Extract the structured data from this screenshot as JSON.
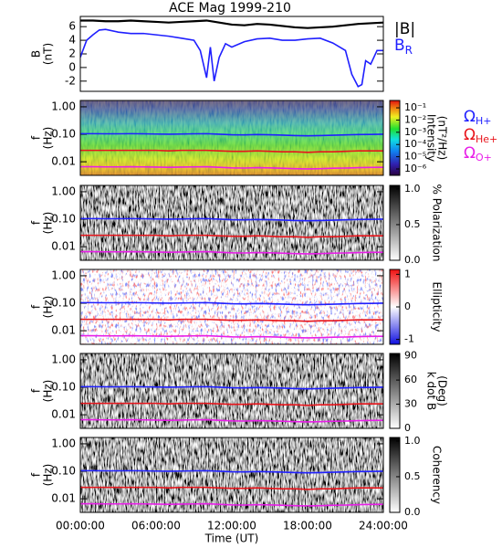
{
  "chart_data": [
    {
      "type": "line",
      "title": "ACE Mag 1999-210",
      "ylabel": [
        "B",
        "(nT)"
      ],
      "xlim": [
        0,
        24
      ],
      "ylim": [
        -3.5,
        7.5
      ],
      "yticks": [
        -2,
        0,
        2,
        4,
        6
      ],
      "series": [
        {
          "name": "|B|",
          "color": "#000000",
          "x": [
            0,
            1,
            2,
            3,
            4,
            5,
            6,
            7,
            8,
            9,
            10,
            11,
            12,
            13,
            14,
            15,
            16,
            17,
            18,
            19,
            20,
            21,
            22,
            23,
            24
          ],
          "values": [
            6.9,
            6.9,
            6.8,
            6.8,
            6.9,
            6.8,
            6.7,
            6.6,
            6.7,
            6.8,
            6.9,
            6.6,
            6.3,
            6.2,
            6.4,
            6.3,
            6.1,
            5.9,
            5.8,
            5.9,
            6.0,
            6.2,
            6.4,
            6.5,
            6.6
          ]
        },
        {
          "name": "B",
          "name_sub": "R",
          "color": "#1f1fff",
          "x": [
            0,
            0.5,
            1,
            1.5,
            2,
            3,
            4,
            5,
            6,
            7,
            8,
            9,
            9.5,
            10,
            10.3,
            10.6,
            11,
            11.5,
            12,
            13,
            14,
            15,
            16,
            17,
            18,
            19,
            20,
            21,
            21.5,
            22,
            22.3,
            22.6,
            23,
            23.5,
            24
          ],
          "values": [
            1.5,
            4,
            4.8,
            5.5,
            5.6,
            5.2,
            5.0,
            5.0,
            4.8,
            4.6,
            4.3,
            4.0,
            2.5,
            -1.5,
            3.0,
            -2.0,
            1.5,
            3.5,
            3.0,
            3.8,
            4.2,
            4.3,
            4.0,
            4.0,
            4.2,
            4.3,
            3.6,
            2.5,
            -1.0,
            -2.8,
            -2.5,
            1.0,
            0.5,
            2.5,
            2.5
          ]
        }
      ]
    },
    {
      "type": "spectrogram",
      "colormap": "rainbow",
      "ylabel": [
        "f",
        "(Hz)"
      ],
      "ylog": true,
      "xlim": [
        0,
        24
      ],
      "ylim": [
        0.0032,
        1.7
      ],
      "yticks": [
        {
          "value": 1,
          "label": "1.00"
        },
        {
          "value": 0.1,
          "label": "0.10"
        },
        {
          "value": 0.01,
          "label": "0.01"
        }
      ],
      "colorbar": {
        "label": [
          "Intensity",
          "(nT²/Hz)"
        ],
        "log": true,
        "clim": [
          3e-07,
          0.4
        ],
        "ticks": [
          {
            "value": 0.1,
            "label": "10⁻¹"
          },
          {
            "value": 0.01,
            "label": "10⁻²"
          },
          {
            "value": 0.001,
            "label": "10⁻³"
          },
          {
            "value": 0.0001,
            "label": "10⁻⁴"
          },
          {
            "value": 1e-05,
            "label": "10⁻⁵"
          },
          {
            "value": 1e-06,
            "label": "10⁻⁶"
          }
        ]
      },
      "x": [
        0,
        1,
        2,
        3,
        4,
        5,
        6,
        7,
        8,
        9,
        10,
        11,
        12,
        13,
        14,
        15,
        16,
        17,
        18,
        19,
        20,
        21,
        22,
        23,
        24
      ],
      "series": [
        {
          "name": "Ω",
          "name_sub": "H+",
          "color": "#1f1fff",
          "values": [
            0.105,
            0.105,
            0.104,
            0.104,
            0.105,
            0.104,
            0.102,
            0.101,
            0.102,
            0.104,
            0.105,
            0.101,
            0.096,
            0.095,
            0.098,
            0.096,
            0.093,
            0.09,
            0.088,
            0.09,
            0.092,
            0.095,
            0.098,
            0.099,
            0.101
          ]
        },
        {
          "name": "Ω",
          "name_sub": "He+",
          "color": "#e8141b",
          "values": [
            0.026,
            0.026,
            0.026,
            0.026,
            0.026,
            0.026,
            0.026,
            0.025,
            0.026,
            0.026,
            0.026,
            0.025,
            0.024,
            0.024,
            0.025,
            0.024,
            0.023,
            0.023,
            0.022,
            0.023,
            0.023,
            0.024,
            0.025,
            0.025,
            0.025
          ]
        },
        {
          "name": "Ω",
          "name_sub": "O+",
          "color": "#e81ee8",
          "values": [
            0.0066,
            0.0066,
            0.0065,
            0.0065,
            0.0066,
            0.0065,
            0.0064,
            0.0063,
            0.0064,
            0.0065,
            0.0066,
            0.0063,
            0.006,
            0.0059,
            0.0061,
            0.006,
            0.0058,
            0.0056,
            0.0055,
            0.0056,
            0.0058,
            0.0059,
            0.0061,
            0.0062,
            0.0063
          ]
        }
      ]
    },
    {
      "type": "spectrogram",
      "colormap": "gray",
      "ylabel": [
        "f",
        "(Hz)"
      ],
      "ylog": true,
      "xlim": [
        0,
        24
      ],
      "ylim": [
        0.0032,
        1.7
      ],
      "yticks": [
        {
          "value": 1,
          "label": "1.00"
        },
        {
          "value": 0.1,
          "label": "0.10"
        },
        {
          "value": 0.01,
          "label": "0.01"
        }
      ],
      "colorbar": {
        "label": [
          "% Polarization"
        ],
        "log": false,
        "clim": [
          0,
          1.05
        ],
        "ticks": [
          {
            "value": 1,
            "label": "1.0"
          },
          {
            "value": 0.5,
            "label": "0.5"
          },
          {
            "value": 0,
            "label": "0.0"
          }
        ]
      },
      "x": [
        0,
        1,
        2,
        3,
        4,
        5,
        6,
        7,
        8,
        9,
        10,
        11,
        12,
        13,
        14,
        15,
        16,
        17,
        18,
        19,
        20,
        21,
        22,
        23,
        24
      ],
      "series": [
        {
          "color": "#1f1fff",
          "values": [
            0.105,
            0.105,
            0.104,
            0.104,
            0.105,
            0.104,
            0.102,
            0.101,
            0.102,
            0.104,
            0.105,
            0.101,
            0.096,
            0.095,
            0.098,
            0.096,
            0.093,
            0.09,
            0.088,
            0.09,
            0.092,
            0.095,
            0.098,
            0.099,
            0.101
          ]
        },
        {
          "color": "#e8141b",
          "values": [
            0.026,
            0.026,
            0.026,
            0.026,
            0.026,
            0.026,
            0.026,
            0.025,
            0.026,
            0.026,
            0.026,
            0.025,
            0.024,
            0.024,
            0.025,
            0.024,
            0.023,
            0.023,
            0.022,
            0.023,
            0.023,
            0.024,
            0.025,
            0.025,
            0.025
          ]
        },
        {
          "color": "#e81ee8",
          "values": [
            0.0066,
            0.0066,
            0.0065,
            0.0065,
            0.0066,
            0.0065,
            0.0064,
            0.0063,
            0.0064,
            0.0065,
            0.0066,
            0.0063,
            0.006,
            0.0059,
            0.0061,
            0.006,
            0.0058,
            0.0056,
            0.0055,
            0.0056,
            0.0058,
            0.0059,
            0.0061,
            0.0062,
            0.0063
          ]
        }
      ]
    },
    {
      "type": "spectrogram",
      "colormap": "bwr",
      "ylabel": [
        "f",
        "(Hz)"
      ],
      "ylog": true,
      "xlim": [
        0,
        24
      ],
      "ylim": [
        0.0032,
        1.7
      ],
      "yticks": [
        {
          "value": 1,
          "label": "1.00"
        },
        {
          "value": 0.1,
          "label": "0.10"
        },
        {
          "value": 0.01,
          "label": "0.01"
        }
      ],
      "colorbar": {
        "label": [
          "Ellipticity"
        ],
        "log": false,
        "clim": [
          -1.15,
          1.15
        ],
        "ticks": [
          1,
          0,
          -1
        ]
      },
      "x": [
        0,
        1,
        2,
        3,
        4,
        5,
        6,
        7,
        8,
        9,
        10,
        11,
        12,
        13,
        14,
        15,
        16,
        17,
        18,
        19,
        20,
        21,
        22,
        23,
        24
      ],
      "series": [
        {
          "color": "#1f1fff",
          "values": [
            0.105,
            0.105,
            0.104,
            0.104,
            0.105,
            0.104,
            0.102,
            0.101,
            0.102,
            0.104,
            0.105,
            0.101,
            0.096,
            0.095,
            0.098,
            0.096,
            0.093,
            0.09,
            0.088,
            0.09,
            0.092,
            0.095,
            0.098,
            0.099,
            0.101
          ]
        },
        {
          "color": "#e8141b",
          "values": [
            0.026,
            0.026,
            0.026,
            0.026,
            0.026,
            0.026,
            0.026,
            0.025,
            0.026,
            0.026,
            0.026,
            0.025,
            0.024,
            0.024,
            0.025,
            0.024,
            0.023,
            0.023,
            0.022,
            0.023,
            0.023,
            0.024,
            0.025,
            0.025,
            0.025
          ]
        },
        {
          "color": "#e81ee8",
          "values": [
            0.0066,
            0.0066,
            0.0065,
            0.0065,
            0.0066,
            0.0065,
            0.0064,
            0.0063,
            0.0064,
            0.0065,
            0.0066,
            0.0063,
            0.006,
            0.0059,
            0.0061,
            0.006,
            0.0058,
            0.0056,
            0.0055,
            0.0056,
            0.0058,
            0.0059,
            0.0061,
            0.0062,
            0.0063
          ]
        }
      ]
    },
    {
      "type": "spectrogram",
      "colormap": "gray",
      "ylabel": [
        "f",
        "(Hz)"
      ],
      "ylog": true,
      "xlim": [
        0,
        24
      ],
      "ylim": [
        0.0032,
        1.7
      ],
      "yticks": [
        {
          "value": 1,
          "label": "1.00"
        },
        {
          "value": 0.1,
          "label": "0.10"
        },
        {
          "value": 0.01,
          "label": "0.01"
        }
      ],
      "colorbar": {
        "label": [
          "k dot B",
          "(Deg)"
        ],
        "log": false,
        "clim": [
          0,
          93
        ],
        "ticks": [
          90,
          60,
          30,
          0
        ]
      },
      "x": [
        0,
        1,
        2,
        3,
        4,
        5,
        6,
        7,
        8,
        9,
        10,
        11,
        12,
        13,
        14,
        15,
        16,
        17,
        18,
        19,
        20,
        21,
        22,
        23,
        24
      ],
      "series": [
        {
          "color": "#1f1fff",
          "values": [
            0.105,
            0.105,
            0.104,
            0.104,
            0.105,
            0.104,
            0.102,
            0.101,
            0.102,
            0.104,
            0.105,
            0.101,
            0.096,
            0.095,
            0.098,
            0.096,
            0.093,
            0.09,
            0.088,
            0.09,
            0.092,
            0.095,
            0.098,
            0.099,
            0.101
          ]
        },
        {
          "color": "#e8141b",
          "values": [
            0.026,
            0.026,
            0.026,
            0.026,
            0.026,
            0.026,
            0.026,
            0.025,
            0.026,
            0.026,
            0.026,
            0.025,
            0.024,
            0.024,
            0.025,
            0.024,
            0.023,
            0.023,
            0.022,
            0.023,
            0.023,
            0.024,
            0.025,
            0.025,
            0.025
          ]
        },
        {
          "color": "#e81ee8",
          "values": [
            0.0066,
            0.0066,
            0.0065,
            0.0065,
            0.0066,
            0.0065,
            0.0064,
            0.0063,
            0.0064,
            0.0065,
            0.0066,
            0.0063,
            0.006,
            0.0059,
            0.0061,
            0.006,
            0.0058,
            0.0056,
            0.0055,
            0.0056,
            0.0058,
            0.0059,
            0.0061,
            0.0062,
            0.0063
          ]
        }
      ]
    },
    {
      "type": "spectrogram",
      "colormap": "gray",
      "ylabel": [
        "f",
        "(Hz)"
      ],
      "ylog": true,
      "xlim": [
        0,
        24
      ],
      "ylim": [
        0.0032,
        1.7
      ],
      "yticks": [
        {
          "value": 1,
          "label": "1.00"
        },
        {
          "value": 0.1,
          "label": "0.10"
        },
        {
          "value": 0.01,
          "label": "0.01"
        }
      ],
      "colorbar": {
        "label": [
          "Coherency"
        ],
        "log": false,
        "clim": [
          0,
          1.05
        ],
        "ticks": [
          {
            "value": 1,
            "label": "1.0"
          },
          {
            "value": 0.5,
            "label": "0.5"
          },
          {
            "value": 0,
            "label": "0.0"
          }
        ]
      },
      "xticks": [
        {
          "value": 0,
          "label": "00:00:00"
        },
        {
          "value": 6,
          "label": "06:00:00"
        },
        {
          "value": 12,
          "label": "12:00:00"
        },
        {
          "value": 18,
          "label": "18:00:00"
        },
        {
          "value": 24,
          "label": "24:00:00"
        }
      ],
      "xlabel": "Time (UT)",
      "x": [
        0,
        1,
        2,
        3,
        4,
        5,
        6,
        7,
        8,
        9,
        10,
        11,
        12,
        13,
        14,
        15,
        16,
        17,
        18,
        19,
        20,
        21,
        22,
        23,
        24
      ],
      "series": [
        {
          "color": "#1f1fff",
          "values": [
            0.105,
            0.105,
            0.104,
            0.104,
            0.105,
            0.104,
            0.102,
            0.101,
            0.102,
            0.104,
            0.105,
            0.101,
            0.096,
            0.095,
            0.098,
            0.096,
            0.093,
            0.09,
            0.088,
            0.09,
            0.092,
            0.095,
            0.098,
            0.099,
            0.101
          ]
        },
        {
          "color": "#e8141b",
          "values": [
            0.026,
            0.026,
            0.026,
            0.026,
            0.026,
            0.026,
            0.026,
            0.025,
            0.026,
            0.026,
            0.026,
            0.025,
            0.024,
            0.024,
            0.025,
            0.024,
            0.023,
            0.023,
            0.022,
            0.023,
            0.023,
            0.024,
            0.025,
            0.025,
            0.025
          ]
        },
        {
          "color": "#e81ee8",
          "values": [
            0.0066,
            0.0066,
            0.0065,
            0.0065,
            0.0066,
            0.0065,
            0.0064,
            0.0063,
            0.0064,
            0.0065,
            0.0066,
            0.0063,
            0.006,
            0.0059,
            0.0061,
            0.006,
            0.0058,
            0.0056,
            0.0055,
            0.0056,
            0.0058,
            0.0059,
            0.0061,
            0.0062,
            0.0063
          ]
        }
      ]
    }
  ]
}
